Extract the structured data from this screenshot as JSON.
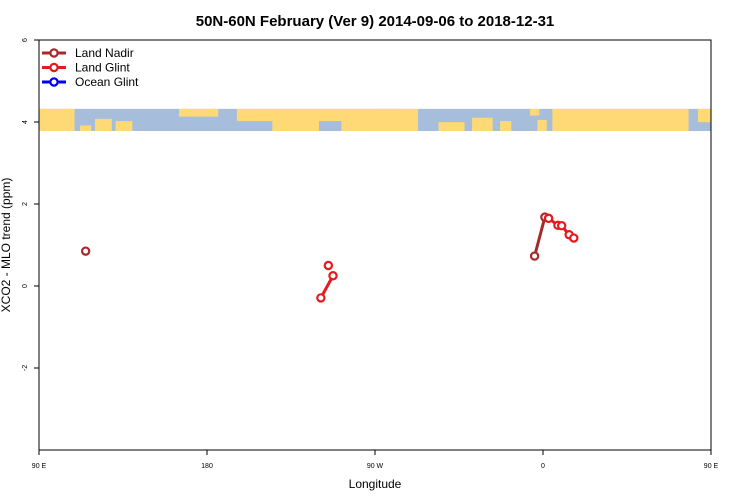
{
  "chart_data": {
    "type": "scatter",
    "title": "50N-60N February (Ver 9)   2014-09-06 to 2018-12-31",
    "xlabel": "Longitude",
    "ylabel": "XCO2 - MLO trend (ppm)",
    "xlim": [
      90,
      450
    ],
    "ylim": [
      -4,
      6
    ],
    "x_ticks": [
      {
        "value": 90,
        "label": "90 E"
      },
      {
        "value": 180,
        "label": "180"
      },
      {
        "value": 270,
        "label": "90 W"
      },
      {
        "value": 360,
        "label": "0"
      },
      {
        "value": 450,
        "label": "90 E"
      },
      {
        "value": 540,
        "label": "180"
      }
    ],
    "y_ticks": [
      {
        "value": -2,
        "label": "-2"
      },
      {
        "value": 0,
        "label": "0"
      },
      {
        "value": 2,
        "label": "2"
      },
      {
        "value": 4,
        "label": "4"
      },
      {
        "value": 6,
        "label": "6"
      }
    ],
    "legend_position": "top-left",
    "map_strip": {
      "y_range": [
        3.78,
        4.32
      ],
      "ocean_color": "#a6bddb",
      "land_color": "#fed976"
    },
    "series": [
      {
        "name": "Land Nadir",
        "color": "#a52a2a",
        "segments": [
          [
            [
              115.0,
              0.85
            ]
          ],
          [
            [
              355.5,
              0.73
            ],
            [
              361.0,
              1.68
            ],
            [
              363.0,
              1.65
            ]
          ],
          [
            [
              475.0,
              0.86
            ]
          ]
        ]
      },
      {
        "name": "Land Glint",
        "color": "#e41a1c",
        "segments": [
          [
            [
              245.0,
              0.5
            ]
          ],
          [
            [
              241.0,
              -0.29
            ],
            [
              247.5,
              0.25
            ]
          ],
          [
            [
              363.0,
              1.65
            ],
            [
              368.0,
              1.48
            ],
            [
              370.0,
              1.47
            ],
            [
              374.0,
              1.25
            ],
            [
              376.5,
              1.17
            ]
          ]
        ]
      },
      {
        "name": "Ocean Glint",
        "color": "#0000ee",
        "segments": []
      }
    ]
  }
}
